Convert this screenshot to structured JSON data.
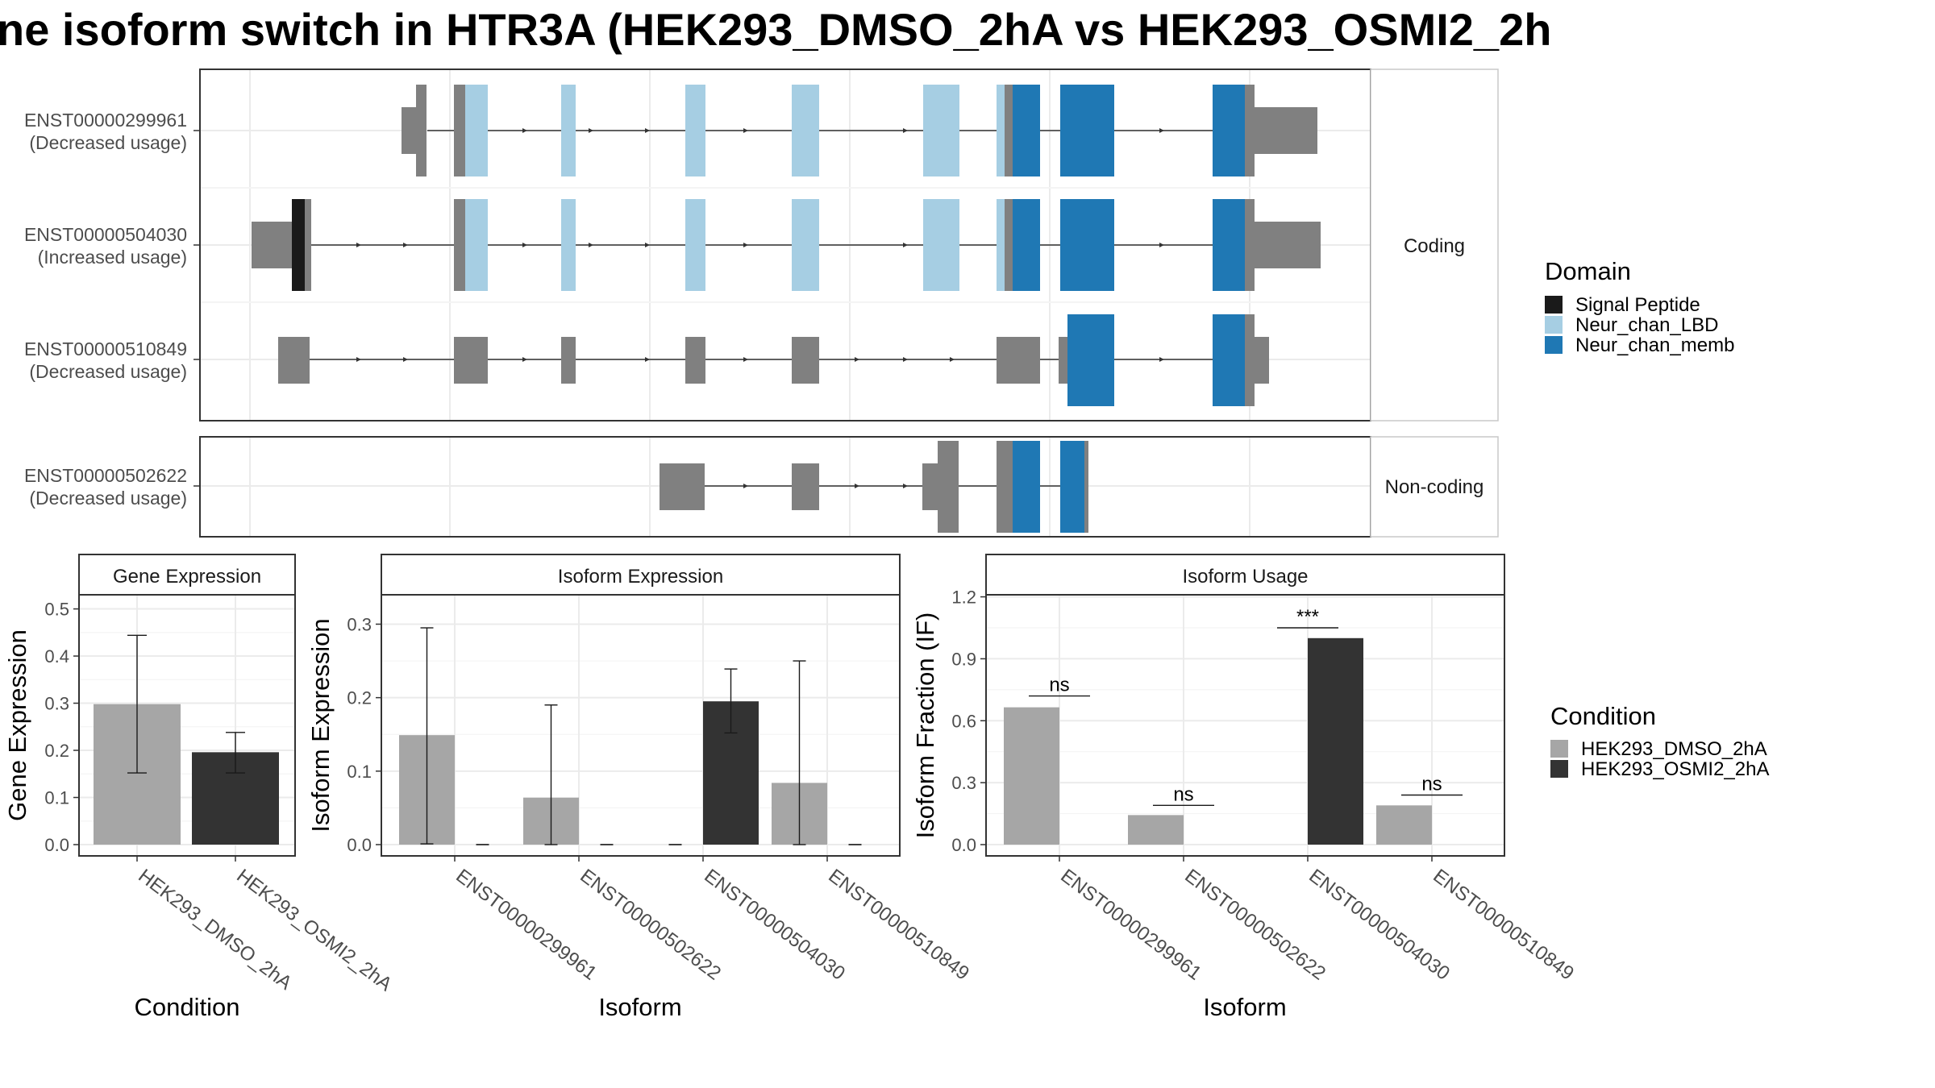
{
  "title": "ne isoform switch in HTR3A (HEK293_DMSO_2hA vs HEK293_OSMI2_2h",
  "colors": {
    "signal_peptide": "#1a1a1a",
    "lbd": "#a6cee3",
    "memb": "#1f78b4",
    "exon_grey": "#808080",
    "dmso": "#a6a6a6",
    "osmi": "#333333"
  },
  "structure": {
    "groups": [
      {
        "label": "Coding",
        "transcripts": [
          {
            "id": "ENST00000299961",
            "usage": "(Decreased usage)"
          },
          {
            "id": "ENST00000504030",
            "usage": "(Increased usage)"
          },
          {
            "id": "ENST00000510849",
            "usage": "(Decreased usage)"
          }
        ]
      },
      {
        "label": "Non-coding",
        "transcripts": [
          {
            "id": "ENST00000502622",
            "usage": "(Decreased usage)"
          }
        ]
      }
    ],
    "legend": {
      "title": "Domain",
      "items": [
        {
          "label": "Signal Peptide",
          "color": "#1a1a1a"
        },
        {
          "label": "Neur_chan_LBD",
          "color": "#a6cee3"
        },
        {
          "label": "Neur_chan_memb",
          "color": "#1f78b4"
        }
      ]
    }
  },
  "condition_legend": {
    "title": "Condition",
    "items": [
      {
        "label": "HEK293_DMSO_2hA",
        "color": "#a6a6a6"
      },
      {
        "label": "HEK293_OSMI2_2hA",
        "color": "#333333"
      }
    ]
  },
  "chart_data": [
    {
      "type": "bar",
      "title": "Gene Expression",
      "xlabel": "Condition",
      "ylabel": "Gene Expression",
      "ylim": [
        0,
        0.53
      ],
      "yticks": [
        0.0,
        0.1,
        0.2,
        0.3,
        0.4,
        0.5
      ],
      "ytick_labels": [
        "0.0",
        "0.1",
        "0.2",
        "0.3",
        "0.4",
        "0.5"
      ],
      "categories": [
        "HEK293_DMSO_2hA",
        "HEK293_OSMI2_2hA"
      ],
      "values": [
        0.298,
        0.196
      ],
      "errors": [
        [
          0.152,
          0.444
        ],
        [
          0.152,
          0.238
        ]
      ]
    },
    {
      "type": "bar",
      "title": "Isoform Expression",
      "xlabel": "Isoform",
      "ylabel": "Isoform Expression",
      "ylim": [
        0,
        0.34
      ],
      "yticks": [
        0.0,
        0.1,
        0.2,
        0.3
      ],
      "ytick_labels": [
        "0.0",
        "0.1",
        "0.2",
        "0.3"
      ],
      "categories": [
        "ENST00000299961",
        "ENST00000502622",
        "ENST00000504030",
        "ENST00000510849"
      ],
      "series": [
        {
          "name": "HEK293_DMSO_2hA",
          "values": [
            0.149,
            0.064,
            0.0,
            0.084
          ],
          "errors": [
            [
              0.001,
              0.295
            ],
            [
              0.0,
              0.19
            ],
            [
              0.0,
              0.0
            ],
            [
              0.0,
              0.25
            ]
          ]
        },
        {
          "name": "HEK293_OSMI2_2hA",
          "values": [
            0.0,
            0.0,
            0.195,
            0.0
          ],
          "errors": [
            [
              0.0,
              0.0
            ],
            [
              0.0,
              0.0
            ],
            [
              0.152,
              0.239
            ],
            [
              0.0,
              0.0
            ]
          ]
        }
      ]
    },
    {
      "type": "bar",
      "title": "Isoform Usage",
      "xlabel": "Isoform",
      "ylabel": "Isoform Fraction (IF)",
      "ylim": [
        0,
        1.21
      ],
      "yticks": [
        0.0,
        0.3,
        0.6,
        0.9,
        1.2
      ],
      "ytick_labels": [
        "0.0",
        "0.3",
        "0.6",
        "0.9",
        "1.2"
      ],
      "categories": [
        "ENST00000299961",
        "ENST00000502622",
        "ENST00000504030",
        "ENST00000510849"
      ],
      "series": [
        {
          "name": "HEK293_DMSO_2hA",
          "values": [
            0.665,
            0.143,
            0.0,
            0.19
          ]
        },
        {
          "name": "HEK293_OSMI2_2hA",
          "values": [
            0.0,
            0.0,
            1.0,
            0.0
          ]
        }
      ],
      "significance": [
        "ns",
        "ns",
        "***",
        "ns"
      ],
      "significance_y": [
        0.72,
        0.19,
        1.05,
        0.24
      ]
    }
  ]
}
